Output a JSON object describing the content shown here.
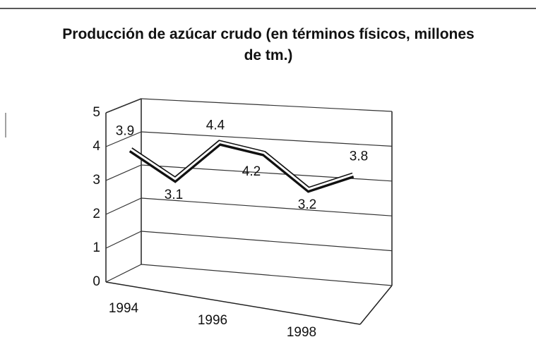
{
  "chart_data": {
    "type": "line",
    "title": "Producción de azúcar crudo (en términos físicos, millones de tm.)",
    "categories": [
      "1994",
      null,
      "1996",
      null,
      "1998",
      null
    ],
    "values": [
      3.9,
      3.1,
      4.4,
      4.2,
      3.2,
      3.8
    ],
    "color": "#111111",
    "ylim": [
      0,
      5
    ],
    "yticks": [
      0,
      1,
      2,
      3,
      4,
      5
    ],
    "grid": true
  }
}
